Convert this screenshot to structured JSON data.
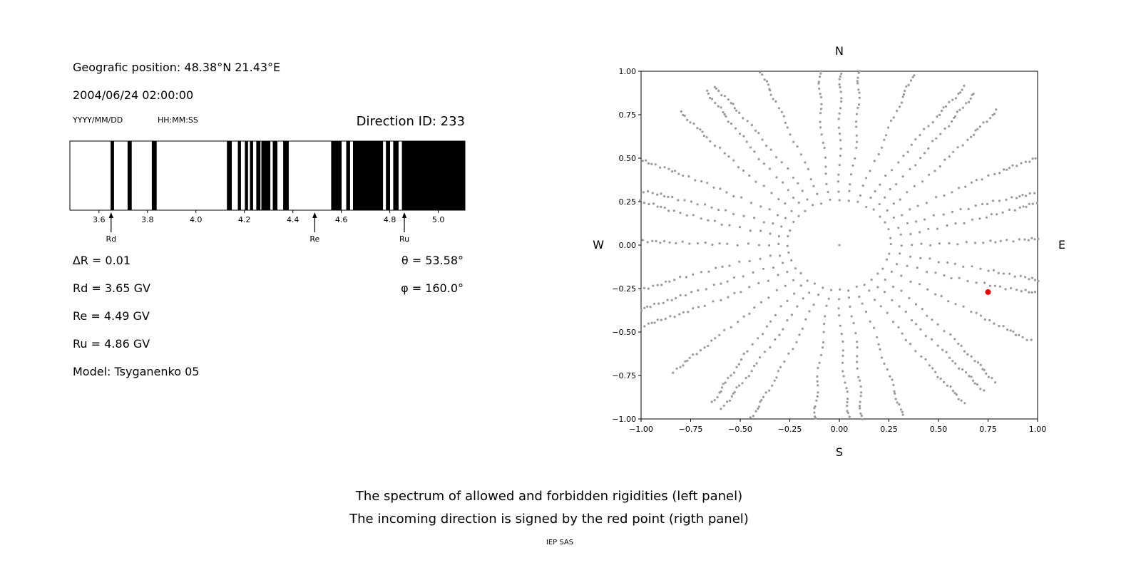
{
  "header": {
    "geographic_position": "Geografic position: 48.38°N 21.43°E",
    "datetime": "2004/06/24 02:00:00",
    "date_format_label": "YYYY/MM/DD",
    "time_format_label": "HH:MM:SS",
    "direction_id": "Direction ID: 233"
  },
  "info": {
    "delta_r": "∆R = 0.01",
    "theta": "θ = 53.58°",
    "rd": "Rd = 3.65 GV",
    "phi": "φ = 160.0°",
    "re": "Re = 4.49 GV",
    "ru": "Ru = 4.86 GV",
    "model": "Model: Tsyganenko 05"
  },
  "captions": {
    "line1": "The spectrum of allowed and forbidden rigidities (left panel)",
    "line2": "The incoming direction is signed by the red point (rigth panel)",
    "credit": "IEP SAS"
  },
  "chart_data": [
    {
      "type": "bar",
      "description": "barcode spectrum of allowed (black) and forbidden rigidities",
      "x_range": [
        3.48,
        5.11
      ],
      "x_ticks": [
        3.6,
        3.8,
        4.0,
        4.2,
        4.4,
        4.6,
        4.8,
        5.0
      ],
      "bar_color": "#000000",
      "black_bands_gv": [
        [
          3.648,
          3.662
        ],
        [
          3.718,
          3.735
        ],
        [
          3.818,
          3.838
        ],
        [
          4.128,
          4.148
        ],
        [
          4.173,
          4.186
        ],
        [
          4.202,
          4.215
        ],
        [
          4.223,
          4.236
        ],
        [
          4.249,
          4.266
        ],
        [
          4.27,
          4.307
        ],
        [
          4.317,
          4.336
        ],
        [
          4.36,
          4.383
        ],
        [
          4.558,
          4.601
        ],
        [
          4.62,
          4.636
        ],
        [
          4.648,
          4.772
        ],
        [
          4.784,
          4.801
        ],
        [
          4.814,
          4.836
        ],
        [
          4.85,
          5.11
        ]
      ],
      "markers": [
        {
          "label": "Rd",
          "value_gv": 3.65
        },
        {
          "label": "Re",
          "value_gv": 4.49
        },
        {
          "label": "Ru",
          "value_gv": 4.86
        }
      ]
    },
    {
      "type": "scatter",
      "description": "incoming direction map with radial spokes of gray dots, red point marks incoming direction",
      "xlim": [
        -1.0,
        1.0
      ],
      "ylim": [
        -1.0,
        1.0
      ],
      "x_ticks": [
        -1.0,
        -0.75,
        -0.5,
        -0.25,
        0.0,
        0.25,
        0.5,
        0.75,
        1.0
      ],
      "y_ticks": [
        -1.0,
        -0.75,
        -0.5,
        -0.25,
        0.0,
        0.25,
        0.5,
        0.75,
        1.0
      ],
      "compass": {
        "top": "N",
        "bottom": "S",
        "left": "W",
        "right": "E"
      },
      "gray_points_spec": {
        "spoke_count": 36,
        "azimuth_step_deg": 10,
        "inner_radius": 0.26,
        "radii": [
          0.26,
          0.31,
          0.36,
          0.41,
          0.46,
          0.51,
          0.56,
          0.6,
          0.64,
          0.68,
          0.72,
          0.76,
          0.79,
          0.82,
          0.85,
          0.88,
          0.905,
          0.93,
          0.95,
          0.97,
          0.99,
          1.01,
          1.03,
          1.05,
          1.07,
          1.09,
          1.11
        ],
        "clip": 1.005,
        "color": "#9a9a9a",
        "center_point": [
          0.0,
          0.0
        ]
      },
      "red_point": {
        "x": 0.75,
        "y": -0.27,
        "color": "#e50000"
      }
    }
  ]
}
